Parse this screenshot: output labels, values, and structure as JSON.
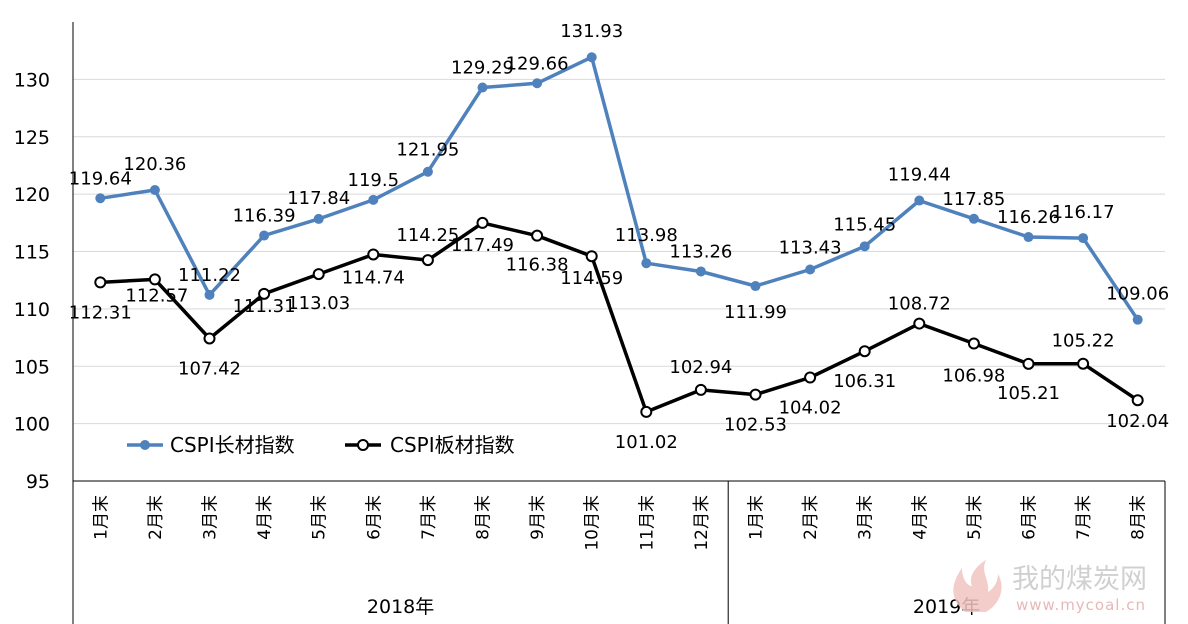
{
  "chart_data": {
    "type": "line",
    "categories": [
      "1月末",
      "2月末",
      "3月末",
      "4月末",
      "5月末",
      "6月末",
      "7月末",
      "8月末",
      "9月末",
      "10月末",
      "11月末",
      "12月末",
      "1月末",
      "2月末",
      "3月末",
      "4月末",
      "5月末",
      "6月末",
      "7月末",
      "8月末"
    ],
    "groups": [
      {
        "label": "2018年",
        "count": 12
      },
      {
        "label": "2019年",
        "count": 8
      }
    ],
    "series": [
      {
        "name": "CSPI长材指数",
        "color": "#4f81bd",
        "marker": "filled-circle",
        "values": [
          119.64,
          120.36,
          111.22,
          116.39,
          117.84,
          119.5,
          121.95,
          129.29,
          129.66,
          131.93,
          113.98,
          113.26,
          111.99,
          113.43,
          115.45,
          119.44,
          117.85,
          116.26,
          116.17,
          109.06
        ],
        "labels": [
          "119.64",
          "120.36",
          "111.22",
          "116.39",
          "117.84",
          "119.5",
          "121.95",
          "129.29",
          "129.66",
          "131.93",
          "113.98",
          "113.26",
          "111.99",
          "113.43",
          "115.45",
          "119.44",
          "117.85",
          "116.26",
          "116.17",
          "109.06"
        ]
      },
      {
        "name": "CSPI板材指数",
        "color": "#000000",
        "marker": "hollow-circle",
        "values": [
          112.31,
          112.57,
          107.42,
          111.31,
          113.03,
          114.74,
          114.25,
          117.49,
          116.38,
          114.59,
          101.02,
          102.94,
          102.53,
          104.02,
          106.31,
          108.72,
          106.98,
          105.21,
          105.22,
          102.04
        ],
        "labels": [
          "112.31",
          "112.57",
          "107.42",
          "111.31",
          "113.03",
          "114.74",
          "114.25",
          "117.49",
          "116.38",
          "114.59",
          "101.02",
          "102.94",
          "102.53",
          "104.02",
          "106.31",
          "108.72",
          "106.98",
          "105.21",
          "105.22",
          "102.04"
        ]
      }
    ],
    "yticks": [
      "95",
      "100",
      "105",
      "110",
      "115",
      "120",
      "125",
      "130"
    ],
    "ylim": [
      95,
      135
    ],
    "grid": true,
    "legend_position": "bottom-left"
  },
  "watermark": {
    "brand": "我的煤炭网",
    "url": "www.mycoal.cn"
  }
}
